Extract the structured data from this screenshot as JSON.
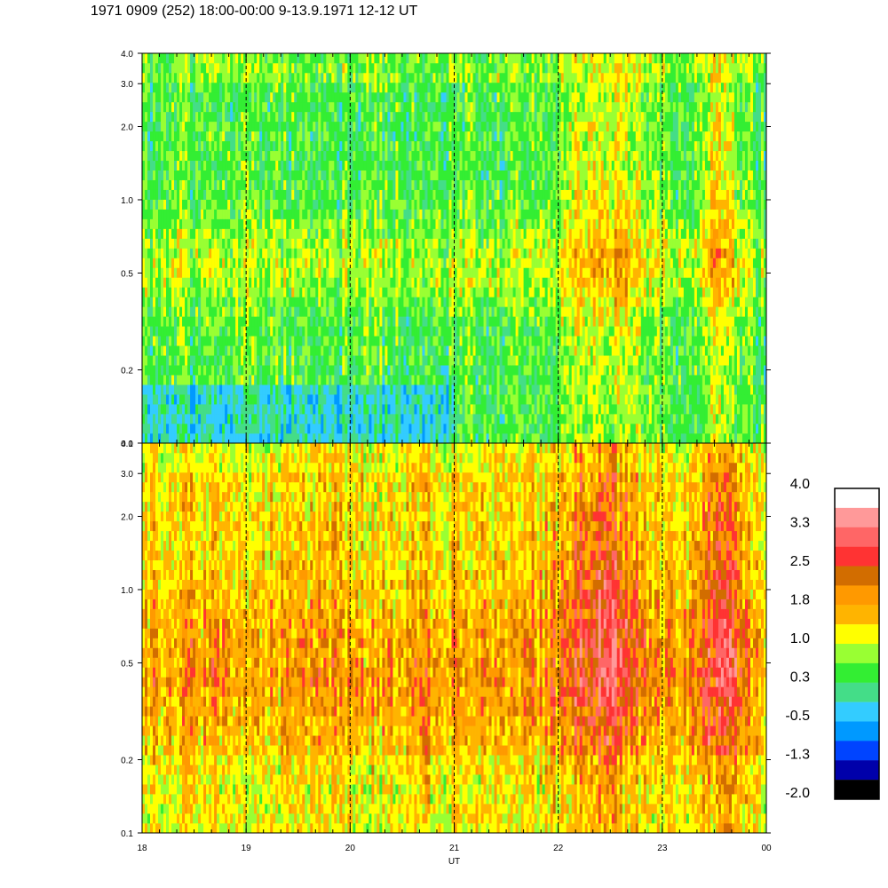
{
  "title": "1971 0909 (252) 18:00-00:00 9-13.9.1971  12-12 UT",
  "chart_data": [
    {
      "type": "heatmap",
      "panel": "upper",
      "x_ticks": [
        "18",
        "19",
        "20",
        "21",
        "22",
        "23",
        "00"
      ],
      "y_ticks": [
        "0.1",
        "0.2",
        "0.5",
        "1.0",
        "2.0",
        "3.0",
        "4.0"
      ],
      "y_values": [
        0.1,
        0.2,
        0.5,
        1.0,
        2.0,
        3.0,
        4.0
      ],
      "yscale": "log",
      "ylim": [
        0.1,
        4.0
      ],
      "xlim": [
        18,
        24
      ],
      "grid": "vertical dashed lines at each hour",
      "dominant_levels": [
        -0.5,
        0.3,
        1.0
      ],
      "enhanced_intervals": [
        [
          22.1,
          22.7
        ],
        [
          23.4,
          23.7
        ]
      ]
    },
    {
      "type": "heatmap",
      "panel": "lower",
      "x_ticks": [
        "18",
        "19",
        "20",
        "21",
        "22",
        "23",
        "00"
      ],
      "y_ticks": [
        "0.1",
        "0.2",
        "0.5",
        "1.0",
        "2.0",
        "3.0",
        "4.0"
      ],
      "y_values": [
        0.1,
        0.2,
        0.5,
        1.0,
        2.0,
        3.0,
        4.0
      ],
      "yscale": "log",
      "ylim": [
        0.1,
        4.0
      ],
      "xlim": [
        18,
        24
      ],
      "xlabel": "UT",
      "grid": "vertical dashed lines at each hour",
      "dominant_levels": [
        1.0,
        1.8
      ],
      "enhanced_intervals": [
        [
          22.1,
          22.7
        ],
        [
          23.4,
          23.7
        ]
      ]
    }
  ],
  "colorbar": {
    "labels": [
      "4.0",
      "3.3",
      "2.5",
      "1.8",
      "1.0",
      "0.3",
      "-0.5",
      "-1.3",
      "-2.0"
    ],
    "colors": [
      "#ffffff",
      "#ff9999",
      "#ff6666",
      "#ff3333",
      "#d26d00",
      "#ff9900",
      "#ffb400",
      "#ffff00",
      "#99ff33",
      "#33ee33",
      "#44dd88",
      "#33ccff",
      "#0099ff",
      "#0044ff",
      "#0000aa",
      "#000000"
    ]
  }
}
